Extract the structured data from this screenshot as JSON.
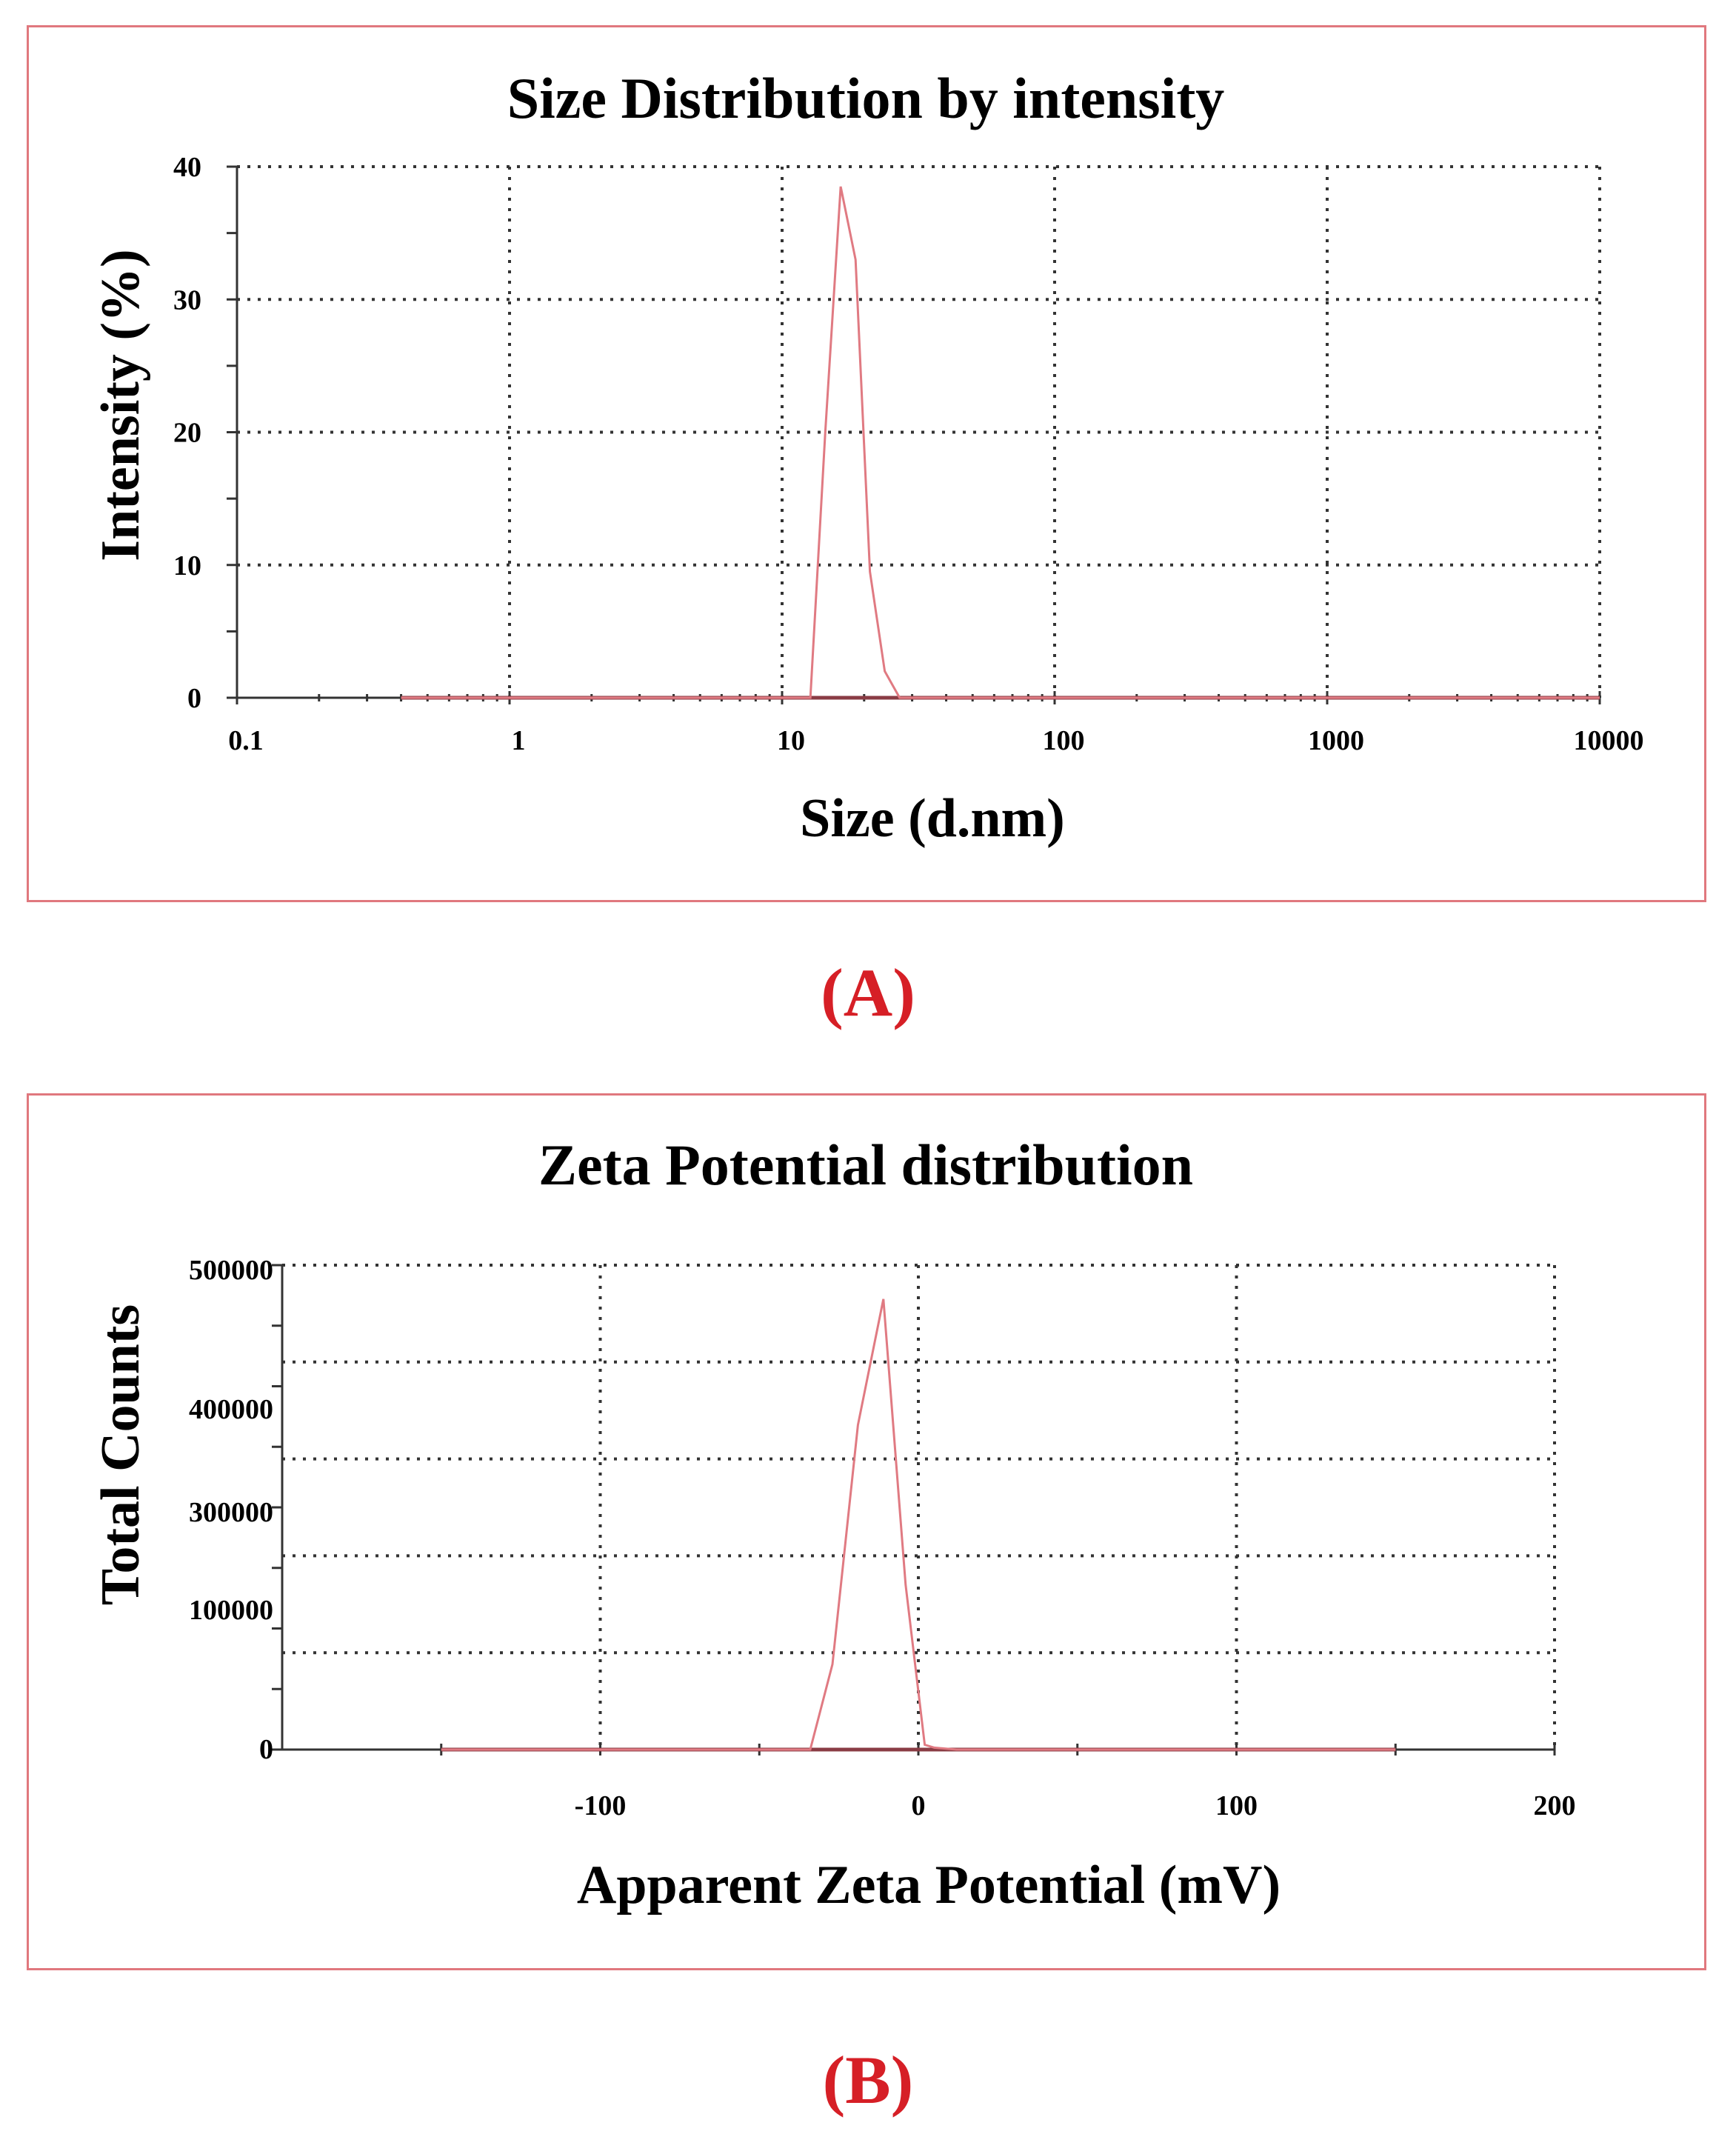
{
  "chart_data": [
    {
      "panel": "A",
      "type": "line",
      "title": "Size Distribution by intensity",
      "xlabel": "Size (d.nm)",
      "ylabel": "Intensity (%)",
      "xscale": "log",
      "xlim": [
        0.1,
        10000
      ],
      "ylim": [
        0,
        40
      ],
      "grid": true,
      "x_ticks": [
        0.1,
        1,
        10,
        100,
        1000,
        10000
      ],
      "x_tick_labels": [
        "0.1",
        "1",
        "10",
        "100",
        "1000",
        "10000"
      ],
      "y_ticks": [
        0,
        10,
        20,
        30,
        40
      ],
      "y_tick_labels": [
        "0",
        "10",
        "20",
        "30",
        "40"
      ],
      "baseline_range": [
        0.4,
        10000
      ],
      "series": [
        {
          "name": "Intensity",
          "color": "#e07a82",
          "x": [
            0.4,
            12.7,
            14.4,
            16.4,
            18.6,
            21.0,
            23.8,
            27.0,
            10000
          ],
          "y": [
            0,
            0,
            20.0,
            38.5,
            33.0,
            9.5,
            2.0,
            0,
            0
          ]
        }
      ]
    },
    {
      "panel": "B",
      "type": "line",
      "title": "Zeta Potential distribution",
      "xlabel": "Apparent Zeta Potential (mV)",
      "ylabel": "Total Counts",
      "xlim": [
        -200,
        200
      ],
      "ylim": [
        0,
        500000
      ],
      "grid": true,
      "x_ticks": [
        -100,
        0,
        100,
        200
      ],
      "x_tick_labels": [
        "-100",
        "0",
        "100",
        "200"
      ],
      "y_ticks": [
        0,
        100000,
        300000,
        400000,
        500000
      ],
      "y_tick_labels": [
        "0",
        "100000",
        "300000",
        "400000",
        "500000"
      ],
      "baseline_range": [
        -150,
        150
      ],
      "series": [
        {
          "name": "Total Counts",
          "color": "#e07a82",
          "x": [
            -150,
            -34,
            -27,
            -19,
            -11,
            -4,
            2,
            5,
            12,
            150
          ],
          "y": [
            0,
            0,
            88000,
            335000,
            465000,
            170000,
            5000,
            2000,
            0,
            0
          ]
        }
      ]
    }
  ],
  "captions": {
    "a": "(A)",
    "b": "(B)"
  }
}
